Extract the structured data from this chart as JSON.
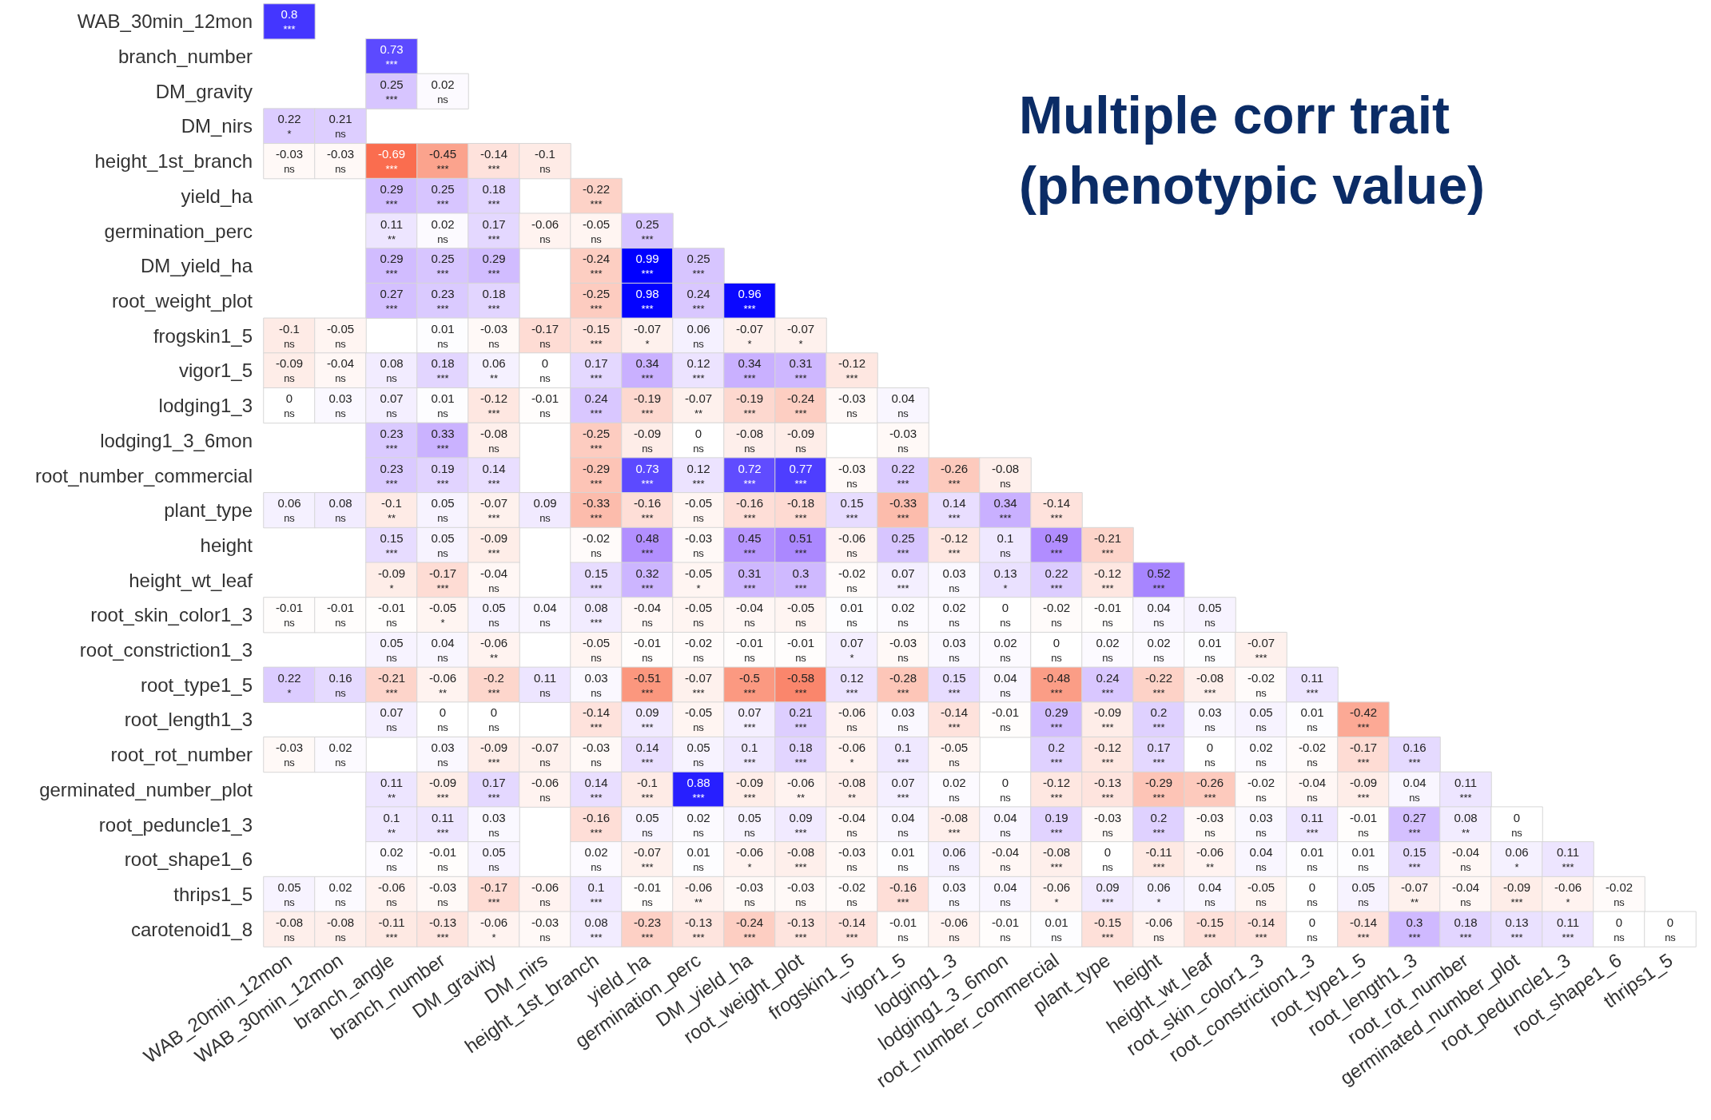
{
  "chart_data": {
    "type": "heatmap",
    "title": "Multiple corr trait (phenotypic value)",
    "categories": [
      "WAB_20min_12mon",
      "WAB_30min_12mon",
      "branch_angle",
      "branch_number",
      "DM_gravity",
      "DM_nirs",
      "height_1st_branch",
      "yield_ha",
      "germination_perc",
      "DM_yield_ha",
      "root_weight_plot",
      "frogskin1_5",
      "vigor1_5",
      "lodging1_3",
      "lodging1_3_6mon",
      "root_number_commercial",
      "plant_type",
      "height",
      "height_wt_leaf",
      "root_skin_color1_3",
      "root_constriction1_3",
      "root_type1_5",
      "root_length1_3",
      "root_rot_number",
      "germinated_number_plot",
      "root_peduncle1_3",
      "root_shape1_6",
      "thrips1_5"
    ],
    "y_categories": [
      "WAB_30min_12mon",
      "branch_number",
      "DM_gravity",
      "DM_nirs",
      "height_1st_branch",
      "yield_ha",
      "germination_perc",
      "DM_yield_ha",
      "root_weight_plot",
      "frogskin1_5",
      "vigor1_5",
      "lodging1_3",
      "lodging1_3_6mon",
      "root_number_commercial",
      "plant_type",
      "height",
      "height_wt_leaf",
      "root_skin_color1_3",
      "root_constriction1_3",
      "root_type1_5",
      "root_length1_3",
      "root_rot_number",
      "germinated_number_plot",
      "root_peduncle1_3",
      "root_shape1_6",
      "thrips1_5",
      "carotenoid1_8"
    ],
    "cells": [
      [
        0.8,
        null,
        null,
        null,
        null,
        null,
        null,
        null,
        null,
        null,
        null,
        null,
        null,
        null,
        null,
        null,
        null,
        null,
        null,
        null,
        null,
        null,
        null,
        null,
        null,
        null,
        null,
        null
      ],
      [
        null,
        null,
        0.73,
        null,
        null,
        null,
        null,
        null,
        null,
        null,
        null,
        null,
        null,
        null,
        null,
        null,
        null,
        null,
        null,
        null,
        null,
        null,
        null,
        null,
        null,
        null,
        null,
        null
      ],
      [
        null,
        null,
        0.25,
        0.02,
        null,
        null,
        null,
        null,
        null,
        null,
        null,
        null,
        null,
        null,
        null,
        null,
        null,
        null,
        null,
        null,
        null,
        null,
        null,
        null,
        null,
        null,
        null,
        null
      ],
      [
        0.22,
        0.21,
        null,
        null,
        null,
        null,
        null,
        null,
        null,
        null,
        null,
        null,
        null,
        null,
        null,
        null,
        null,
        null,
        null,
        null,
        null,
        null,
        null,
        null,
        null,
        null,
        null,
        null
      ],
      [
        -0.03,
        -0.03,
        -0.69,
        -0.45,
        -0.14,
        -0.1,
        null,
        null,
        null,
        null,
        null,
        null,
        null,
        null,
        null,
        null,
        null,
        null,
        null,
        null,
        null,
        null,
        null,
        null,
        null,
        null,
        null,
        null
      ],
      [
        null,
        null,
        0.29,
        0.25,
        0.18,
        null,
        -0.22,
        null,
        null,
        null,
        null,
        null,
        null,
        null,
        null,
        null,
        null,
        null,
        null,
        null,
        null,
        null,
        null,
        null,
        null,
        null,
        null,
        null
      ],
      [
        null,
        null,
        0.11,
        0.02,
        0.17,
        -0.06,
        -0.05,
        0.25,
        null,
        null,
        null,
        null,
        null,
        null,
        null,
        null,
        null,
        null,
        null,
        null,
        null,
        null,
        null,
        null,
        null,
        null,
        null,
        null
      ],
      [
        null,
        null,
        0.29,
        0.25,
        0.29,
        null,
        -0.24,
        0.99,
        0.25,
        null,
        null,
        null,
        null,
        null,
        null,
        null,
        null,
        null,
        null,
        null,
        null,
        null,
        null,
        null,
        null,
        null,
        null,
        null
      ],
      [
        null,
        null,
        0.27,
        0.23,
        0.18,
        null,
        -0.25,
        0.98,
        0.24,
        0.96,
        null,
        null,
        null,
        null,
        null,
        null,
        null,
        null,
        null,
        null,
        null,
        null,
        null,
        null,
        null,
        null,
        null,
        null
      ],
      [
        -0.1,
        -0.05,
        null,
        0.01,
        -0.03,
        -0.17,
        -0.15,
        -0.07,
        0.06,
        -0.07,
        -0.07,
        null,
        null,
        null,
        null,
        null,
        null,
        null,
        null,
        null,
        null,
        null,
        null,
        null,
        null,
        null,
        null,
        null
      ],
      [
        -0.09,
        -0.04,
        0.08,
        0.18,
        0.06,
        0,
        0.17,
        0.34,
        0.12,
        0.34,
        0.31,
        -0.12,
        null,
        null,
        null,
        null,
        null,
        null,
        null,
        null,
        null,
        null,
        null,
        null,
        null,
        null,
        null,
        null
      ],
      [
        0,
        0.03,
        0.07,
        0.01,
        -0.12,
        -0.01,
        0.24,
        -0.19,
        -0.07,
        -0.19,
        -0.24,
        -0.03,
        0.04,
        null,
        null,
        null,
        null,
        null,
        null,
        null,
        null,
        null,
        null,
        null,
        null,
        null,
        null,
        null
      ],
      [
        null,
        null,
        0.23,
        0.33,
        -0.08,
        null,
        -0.25,
        -0.09,
        0,
        -0.08,
        -0.09,
        null,
        -0.03,
        null,
        null,
        null,
        null,
        null,
        null,
        null,
        null,
        null,
        null,
        null,
        null,
        null,
        null,
        null
      ],
      [
        null,
        null,
        0.23,
        0.19,
        0.14,
        null,
        -0.29,
        0.73,
        0.12,
        0.72,
        0.77,
        -0.03,
        0.22,
        -0.26,
        -0.08,
        null,
        null,
        null,
        null,
        null,
        null,
        null,
        null,
        null,
        null,
        null,
        null,
        null
      ],
      [
        0.06,
        0.08,
        -0.1,
        0.05,
        -0.07,
        0.09,
        -0.33,
        -0.16,
        -0.05,
        -0.16,
        -0.18,
        0.15,
        -0.33,
        0.14,
        0.34,
        -0.14,
        null,
        null,
        null,
        null,
        null,
        null,
        null,
        null,
        null,
        null,
        null,
        null
      ],
      [
        null,
        null,
        0.15,
        0.05,
        -0.09,
        null,
        -0.02,
        0.48,
        -0.03,
        0.45,
        0.51,
        -0.06,
        0.25,
        -0.12,
        0.1,
        0.49,
        -0.21,
        null,
        null,
        null,
        null,
        null,
        null,
        null,
        null,
        null,
        null,
        null
      ],
      [
        null,
        null,
        -0.09,
        -0.17,
        -0.04,
        null,
        0.15,
        0.32,
        -0.05,
        0.31,
        0.3,
        -0.02,
        0.07,
        0.03,
        0.13,
        0.22,
        -0.12,
        0.52,
        null,
        null,
        null,
        null,
        null,
        null,
        null,
        null,
        null,
        null
      ],
      [
        -0.01,
        -0.01,
        -0.01,
        -0.05,
        0.05,
        0.04,
        0.08,
        -0.04,
        -0.05,
        -0.04,
        -0.05,
        0.01,
        0.02,
        0.02,
        0,
        -0.02,
        -0.01,
        0.04,
        0.05,
        null,
        null,
        null,
        null,
        null,
        null,
        null,
        null,
        null
      ],
      [
        null,
        null,
        0.05,
        0.04,
        -0.06,
        null,
        -0.05,
        -0.01,
        -0.02,
        -0.01,
        -0.01,
        0.07,
        -0.03,
        0.03,
        0.02,
        0,
        0.02,
        0.02,
        0.01,
        -0.07,
        null,
        null,
        null,
        null,
        null,
        null,
        null,
        null
      ],
      [
        0.22,
        0.16,
        -0.21,
        -0.06,
        -0.2,
        0.11,
        0.03,
        -0.51,
        -0.07,
        -0.5,
        -0.58,
        0.12,
        -0.28,
        0.15,
        0.04,
        -0.48,
        0.24,
        -0.22,
        -0.08,
        -0.02,
        0.11,
        null,
        null,
        null,
        null,
        null,
        null,
        null
      ],
      [
        null,
        null,
        0.07,
        0,
        0,
        null,
        -0.14,
        0.09,
        -0.05,
        0.07,
        0.21,
        -0.06,
        0.03,
        -0.14,
        -0.01,
        0.29,
        -0.09,
        0.2,
        0.03,
        0.05,
        0.01,
        -0.42,
        null,
        null,
        null,
        null,
        null,
        null
      ],
      [
        -0.03,
        0.02,
        null,
        0.03,
        -0.09,
        -0.07,
        -0.03,
        0.14,
        0.05,
        0.1,
        0.18,
        -0.06,
        0.1,
        -0.05,
        null,
        0.2,
        -0.12,
        0.17,
        0,
        0.02,
        -0.02,
        -0.17,
        0.16,
        null,
        null,
        null,
        null,
        null
      ],
      [
        null,
        null,
        0.11,
        -0.09,
        0.17,
        -0.06,
        0.14,
        -0.1,
        0.88,
        -0.09,
        -0.06,
        -0.08,
        0.07,
        0.02,
        0,
        -0.12,
        -0.13,
        -0.29,
        -0.26,
        -0.02,
        -0.04,
        -0.09,
        0.04,
        0.11,
        null,
        null,
        null,
        null
      ],
      [
        null,
        null,
        0.1,
        0.11,
        0.03,
        null,
        -0.16,
        0.05,
        0.02,
        0.05,
        0.09,
        -0.04,
        0.04,
        -0.08,
        0.04,
        0.19,
        -0.03,
        0.2,
        -0.03,
        0.03,
        0.11,
        -0.01,
        0.27,
        0.08,
        0,
        null,
        null,
        null
      ],
      [
        null,
        null,
        0.02,
        -0.01,
        0.05,
        null,
        0.02,
        -0.07,
        0.01,
        -0.06,
        -0.08,
        -0.03,
        0.01,
        0.06,
        -0.04,
        -0.08,
        0,
        -0.11,
        -0.06,
        0.04,
        0.01,
        0.01,
        0.15,
        -0.04,
        0.06,
        0.11,
        null,
        null
      ],
      [
        0.05,
        0.02,
        -0.06,
        -0.03,
        -0.17,
        -0.06,
        0.1,
        -0.01,
        -0.06,
        -0.03,
        -0.03,
        -0.02,
        -0.16,
        0.03,
        0.04,
        -0.06,
        0.09,
        0.06,
        0.04,
        -0.05,
        0,
        0.05,
        -0.07,
        -0.04,
        -0.09,
        -0.06,
        -0.02,
        null
      ],
      [
        -0.08,
        -0.08,
        -0.11,
        -0.13,
        -0.06,
        -0.03,
        0.08,
        -0.23,
        -0.13,
        -0.24,
        -0.13,
        -0.14,
        -0.01,
        -0.06,
        -0.01,
        0.01,
        -0.15,
        -0.06,
        -0.15,
        -0.14,
        0,
        -0.14,
        0.3,
        0.18,
        0.13,
        0.11,
        0,
        0
      ]
    ],
    "cell_labels": [
      [
        "0.8\n***",
        null,
        null,
        null,
        null,
        null,
        null,
        null,
        null,
        null,
        null,
        null,
        null,
        null,
        null,
        null,
        null,
        null,
        null,
        null,
        null,
        null,
        null,
        null,
        null,
        null,
        null,
        null
      ],
      [
        null,
        null,
        "0.73\n***",
        null,
        null,
        null,
        null,
        null,
        null,
        null,
        null,
        null,
        null,
        null,
        null,
        null,
        null,
        null,
        null,
        null,
        null,
        null,
        null,
        null,
        null,
        null,
        null,
        null
      ],
      [
        null,
        null,
        "0.25\n***",
        "0.02\nns",
        null,
        null,
        null,
        null,
        null,
        null,
        null,
        null,
        null,
        null,
        null,
        null,
        null,
        null,
        null,
        null,
        null,
        null,
        null,
        null,
        null,
        null,
        null,
        null
      ],
      [
        "0.22\n*",
        "0.21\nns",
        null,
        null,
        null,
        null,
        null,
        null,
        null,
        null,
        null,
        null,
        null,
        null,
        null,
        null,
        null,
        null,
        null,
        null,
        null,
        null,
        null,
        null,
        null,
        null,
        null,
        null
      ],
      [
        "-0.03\nns",
        "-0.03\nns",
        "-0.69\n***",
        "-0.45\n***",
        "-0.14\n***",
        "-0.1\nns",
        null,
        null,
        null,
        null,
        null,
        null,
        null,
        null,
        null,
        null,
        null,
        null,
        null,
        null,
        null,
        null,
        null,
        null,
        null,
        null,
        null,
        null
      ],
      [
        null,
        null,
        "0.29\n***",
        "0.25\n***",
        "0.18\n***",
        null,
        "-0.22\n***",
        null,
        null,
        null,
        null,
        null,
        null,
        null,
        null,
        null,
        null,
        null,
        null,
        null,
        null,
        null,
        null,
        null,
        null,
        null,
        null,
        null
      ],
      [
        null,
        null,
        "0.11\n**",
        "0.02\nns",
        "0.17\n***",
        "-0.06\nns",
        "-0.05\nns",
        "0.25\n***",
        null,
        null,
        null,
        null,
        null,
        null,
        null,
        null,
        null,
        null,
        null,
        null,
        null,
        null,
        null,
        null,
        null,
        null,
        null,
        null
      ],
      [
        null,
        null,
        "0.29\n***",
        "0.25\n***",
        "0.29\n***",
        null,
        "-0.24\n***",
        "0.99\n***",
        "0.25\n***",
        null,
        null,
        null,
        null,
        null,
        null,
        null,
        null,
        null,
        null,
        null,
        null,
        null,
        null,
        null,
        null,
        null,
        null,
        null
      ],
      [
        null,
        null,
        "0.27\n***",
        "0.23\n***",
        "0.18\n***",
        null,
        "-0.25\n***",
        "0.98\n***",
        "0.24\n***",
        "0.96\n***",
        null,
        null,
        null,
        null,
        null,
        null,
        null,
        null,
        null,
        null,
        null,
        null,
        null,
        null,
        null,
        null,
        null,
        null
      ],
      [
        "-0.1\nns",
        "-0.05\nns",
        null,
        "0.01\nns",
        "-0.03\nns",
        "-0.17\nns",
        "-0.15\n***",
        "-0.07\n*",
        "0.06\nns",
        "-0.07\n*",
        "-0.07\n*",
        null,
        null,
        null,
        null,
        null,
        null,
        null,
        null,
        null,
        null,
        null,
        null,
        null,
        null,
        null,
        null,
        null
      ],
      [
        "-0.09\nns",
        "-0.04\nns",
        "0.08\nns",
        "0.18\n***",
        "0.06\n**",
        "0\nns",
        "0.17\n***",
        "0.34\n***",
        "0.12\n***",
        "0.34\n***",
        "0.31\n***",
        "-0.12\n***",
        null,
        null,
        null,
        null,
        null,
        null,
        null,
        null,
        null,
        null,
        null,
        null,
        null,
        null,
        null,
        null
      ],
      [
        "0\nns",
        "0.03\nns",
        "0.07\nns",
        "0.01\nns",
        "-0.12\n***",
        "-0.01\nns",
        "0.24\n***",
        "-0.19\n***",
        "-0.07\n**",
        "-0.19\n***",
        "-0.24\n***",
        "-0.03\nns",
        "0.04\nns",
        null,
        null,
        null,
        null,
        null,
        null,
        null,
        null,
        null,
        null,
        null,
        null,
        null,
        null,
        null
      ],
      [
        null,
        null,
        "0.23\n***",
        "0.33\n***",
        "-0.08\nns",
        null,
        "-0.25\n***",
        "-0.09\nns",
        "0\nns",
        "-0.08\nns",
        "-0.09\nns",
        null,
        "-0.03\nns",
        null,
        null,
        null,
        null,
        null,
        null,
        null,
        null,
        null,
        null,
        null,
        null,
        null,
        null,
        null
      ],
      [
        null,
        null,
        "0.23\n***",
        "0.19\n***",
        "0.14\n***",
        null,
        "-0.29\n***",
        "0.73\n***",
        "0.12\n***",
        "0.72\n***",
        "0.77\n***",
        "-0.03\nns",
        "0.22\n***",
        "-0.26\n***",
        "-0.08\nns",
        null,
        null,
        null,
        null,
        null,
        null,
        null,
        null,
        null,
        null,
        null,
        null,
        null
      ],
      [
        "0.06\nns",
        "0.08\nns",
        "-0.1\n**",
        "0.05\nns",
        "-0.07\n***",
        "0.09\nns",
        "-0.33\n***",
        "-0.16\n***",
        "-0.05\nns",
        "-0.16\n***",
        "-0.18\n***",
        "0.15\n***",
        "-0.33\n***",
        "0.14\n***",
        "0.34\n***",
        "-0.14\n***",
        null,
        null,
        null,
        null,
        null,
        null,
        null,
        null,
        null,
        null,
        null,
        null
      ],
      [
        null,
        null,
        "0.15\n***",
        "0.05\nns",
        "-0.09\n***",
        null,
        "-0.02\nns",
        "0.48\n***",
        "-0.03\nns",
        "0.45\n***",
        "0.51\n***",
        "-0.06\nns",
        "0.25\n***",
        "-0.12\n***",
        "0.1\nns",
        "0.49\n***",
        "-0.21\n***",
        null,
        null,
        null,
        null,
        null,
        null,
        null,
        null,
        null,
        null,
        null
      ],
      [
        null,
        null,
        "-0.09\n*",
        "-0.17\n***",
        "-0.04\nns",
        null,
        "0.15\n***",
        "0.32\n***",
        "-0.05\n*",
        "0.31\n***",
        "0.3\n***",
        "-0.02\nns",
        "0.07\n***",
        "0.03\nns",
        "0.13\n*",
        "0.22\n***",
        "-0.12\n***",
        "0.52\n***",
        null,
        null,
        null,
        null,
        null,
        null,
        null,
        null,
        null,
        null
      ],
      [
        "-0.01\nns",
        "-0.01\nns",
        "-0.01\nns",
        "-0.05\n*",
        "0.05\nns",
        "0.04\nns",
        "0.08\n***",
        "-0.04\nns",
        "-0.05\nns",
        "-0.04\nns",
        "-0.05\nns",
        "0.01\nns",
        "0.02\nns",
        "0.02\nns",
        "0\nns",
        "-0.02\nns",
        "-0.01\nns",
        "0.04\nns",
        "0.05\nns",
        null,
        null,
        null,
        null,
        null,
        null,
        null,
        null,
        null
      ],
      [
        null,
        null,
        "0.05\nns",
        "0.04\nns",
        "-0.06\n**",
        null,
        "-0.05\nns",
        "-0.01\nns",
        "-0.02\nns",
        "-0.01\nns",
        "-0.01\nns",
        "0.07\n*",
        "-0.03\nns",
        "0.03\nns",
        "0.02\nns",
        "0\nns",
        "0.02\nns",
        "0.02\nns",
        "0.01\nns",
        "-0.07\n***",
        null,
        null,
        null,
        null,
        null,
        null,
        null,
        null
      ],
      [
        "0.22\n*",
        "0.16\nns",
        "-0.21\n***",
        "-0.06\n**",
        "-0.2\n***",
        "0.11\nns",
        "0.03\nns",
        "-0.51\n***",
        "-0.07\n***",
        "-0.5\n***",
        "-0.58\n***",
        "0.12\n***",
        "-0.28\n***",
        "0.15\n***",
        "0.04\nns",
        "-0.48\n***",
        "0.24\n***",
        "-0.22\n***",
        "-0.08\n***",
        "-0.02\nns",
        "0.11\n***",
        null,
        null,
        null,
        null,
        null,
        null,
        null
      ],
      [
        null,
        null,
        "0.07\nns",
        "0\nns",
        "0\nns",
        null,
        "-0.14\n***",
        "0.09\n***",
        "-0.05\nns",
        "0.07\n***",
        "0.21\n***",
        "-0.06\nns",
        "0.03\nns",
        "-0.14\n***",
        "-0.01\nns",
        "0.29\n***",
        "-0.09\n***",
        "0.2\n***",
        "0.03\nns",
        "0.05\nns",
        "0.01\nns",
        "-0.42\n***",
        null,
        null,
        null,
        null,
        null,
        null
      ],
      [
        "-0.03\nns",
        "0.02\nns",
        null,
        "0.03\nns",
        "-0.09\n***",
        "-0.07\nns",
        "-0.03\nns",
        "0.14\n***",
        "0.05\nns",
        "0.1\n***",
        "0.18\n***",
        "-0.06\n*",
        "0.1\n***",
        "-0.05\nns",
        null,
        "0.2\n***",
        "-0.12\n***",
        "0.17\n***",
        "0\nns",
        "0.02\nns",
        "-0.02\nns",
        "-0.17\n***",
        "0.16\n***",
        null,
        null,
        null,
        null,
        null
      ],
      [
        null,
        null,
        "0.11\n**",
        "-0.09\n***",
        "0.17\n***",
        "-0.06\nns",
        "0.14\n***",
        "-0.1\n***",
        "0.88\n***",
        "-0.09\n***",
        "-0.06\n**",
        "-0.08\n**",
        "0.07\n***",
        "0.02\nns",
        "0\nns",
        "-0.12\n***",
        "-0.13\n***",
        "-0.29\n***",
        "-0.26\n***",
        "-0.02\nns",
        "-0.04\nns",
        "-0.09\n***",
        "0.04\nns",
        "0.11\n***",
        null,
        null,
        null,
        null
      ],
      [
        null,
        null,
        "0.1\n**",
        "0.11\n***",
        "0.03\nns",
        null,
        "-0.16\n***",
        "0.05\nns",
        "0.02\nns",
        "0.05\nns",
        "0.09\n***",
        "-0.04\nns",
        "0.04\nns",
        "-0.08\n***",
        "0.04\nns",
        "0.19\n***",
        "-0.03\nns",
        "0.2\n***",
        "-0.03\nns",
        "0.03\nns",
        "0.11\n***",
        "-0.01\nns",
        "0.27\n***",
        "0.08\n**",
        "0\nns",
        null,
        null,
        null
      ],
      [
        null,
        null,
        "0.02\nns",
        "-0.01\nns",
        "0.05\nns",
        null,
        "0.02\nns",
        "-0.07\n***",
        "0.01\nns",
        "-0.06\n*",
        "-0.08\n***",
        "-0.03\nns",
        "0.01\nns",
        "0.06\nns",
        "-0.04\nns",
        "-0.08\n***",
        "0\nns",
        "-0.11\n***",
        "-0.06\n**",
        "0.04\nns",
        "0.01\nns",
        "0.01\nns",
        "0.15\n***",
        "-0.04\nns",
        "0.06\n*",
        "0.11\n***",
        null,
        null
      ],
      [
        "0.05\nns",
        "0.02\nns",
        "-0.06\nns",
        "-0.03\nns",
        "-0.17\n***",
        "-0.06\nns",
        "0.1\n***",
        "-0.01\nns",
        "-0.06\n**",
        "-0.03\nns",
        "-0.03\nns",
        "-0.02\nns",
        "-0.16\n***",
        "0.03\nns",
        "0.04\nns",
        "-0.06\n*",
        "0.09\n***",
        "0.06\n*",
        "0.04\nns",
        "-0.05\nns",
        "0\nns",
        "0.05\nns",
        "-0.07\n**",
        "-0.04\nns",
        "-0.09\n***",
        "-0.06\n*",
        "-0.02\nns",
        null
      ],
      [
        "-0.08\nns",
        "-0.08\nns",
        "-0.11\n***",
        "-0.13\n***",
        "-0.06\n*",
        "-0.03\nns",
        "0.08\n***",
        "-0.23\n***",
        "-0.13\n***",
        "-0.24\n***",
        "-0.13\n***",
        "-0.14\n***",
        "-0.01\nns",
        "-0.06\nns",
        "-0.01\nns",
        "0.01\nns",
        "-0.15\n***",
        "-0.06\nns",
        "-0.15\n***",
        "-0.14\n***",
        "0\nns",
        "-0.14\n***",
        "0.3\n***",
        "0.18\n***",
        "0.13\n***",
        "0.11\n***",
        "0\nns",
        "0\nns"
      ]
    ]
  }
}
